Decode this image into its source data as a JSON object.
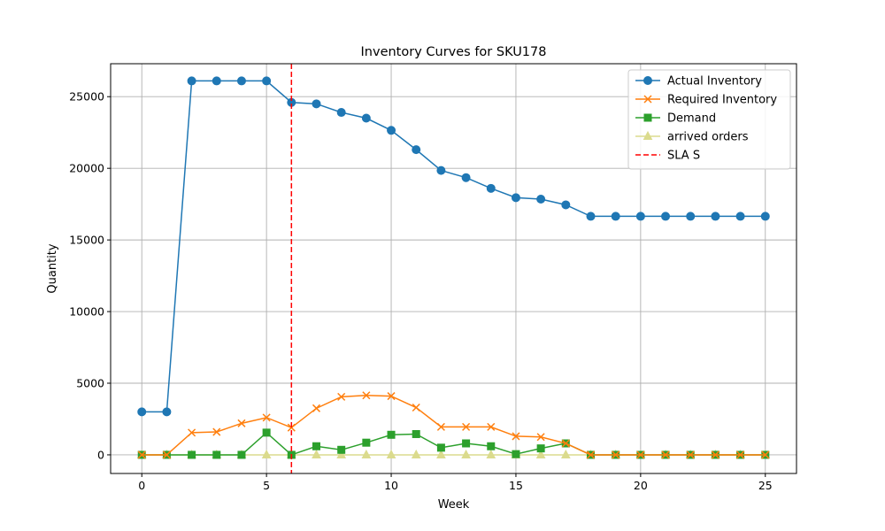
{
  "chart_data": {
    "type": "line",
    "title": "Inventory Curves for SKU178",
    "xlabel": "Week",
    "ylabel": "Quantity",
    "xlim": [
      -1.25,
      26.25
    ],
    "ylim": [
      -1300,
      27300
    ],
    "xticks": [
      0,
      5,
      10,
      15,
      20,
      25
    ],
    "yticks": [
      0,
      5000,
      10000,
      15000,
      20000,
      25000
    ],
    "grid": true,
    "legend_position": "top-right",
    "x": [
      0,
      1,
      2,
      3,
      4,
      5,
      6,
      7,
      8,
      9,
      10,
      11,
      12,
      13,
      14,
      15,
      16,
      17,
      18,
      19,
      20,
      21,
      22,
      23,
      24,
      25
    ],
    "series": [
      {
        "name": "Actual Inventory",
        "color": "#1f77b4",
        "marker": "circle",
        "values": [
          3000,
          3000,
          26100,
          26100,
          26100,
          26100,
          24600,
          24500,
          23900,
          23500,
          22650,
          21300,
          19850,
          19350,
          18600,
          17950,
          17850,
          17450,
          16650,
          16650,
          16650,
          16650,
          16650,
          16650,
          16650,
          16650
        ]
      },
      {
        "name": "Required Inventory",
        "color": "#ff7f0e",
        "marker": "x",
        "values": [
          0,
          0,
          1550,
          1600,
          2200,
          2600,
          1900,
          3250,
          4050,
          4150,
          4100,
          3300,
          1950,
          1950,
          1950,
          1300,
          1250,
          800,
          0,
          0,
          0,
          0,
          0,
          0,
          0,
          0
        ]
      },
      {
        "name": "Demand",
        "color": "#2ca02c",
        "marker": "square",
        "values": [
          0,
          0,
          0,
          0,
          0,
          1550,
          0,
          600,
          350,
          850,
          1400,
          1450,
          500,
          800,
          600,
          50,
          450,
          800,
          0,
          0,
          0,
          0,
          0,
          0,
          0,
          0
        ]
      },
      {
        "name": "arrived orders",
        "color": "#dbdb8d",
        "marker": "triangle",
        "values": [
          0,
          0,
          0,
          0,
          0,
          0,
          0,
          0,
          0,
          0,
          0,
          0,
          0,
          0,
          0,
          0,
          0,
          0,
          0,
          0,
          0,
          0,
          0,
          0,
          0,
          0
        ]
      }
    ],
    "vline": {
      "name": "SLA S",
      "x": 6,
      "color": "#ff0000",
      "style": "dashed"
    }
  }
}
